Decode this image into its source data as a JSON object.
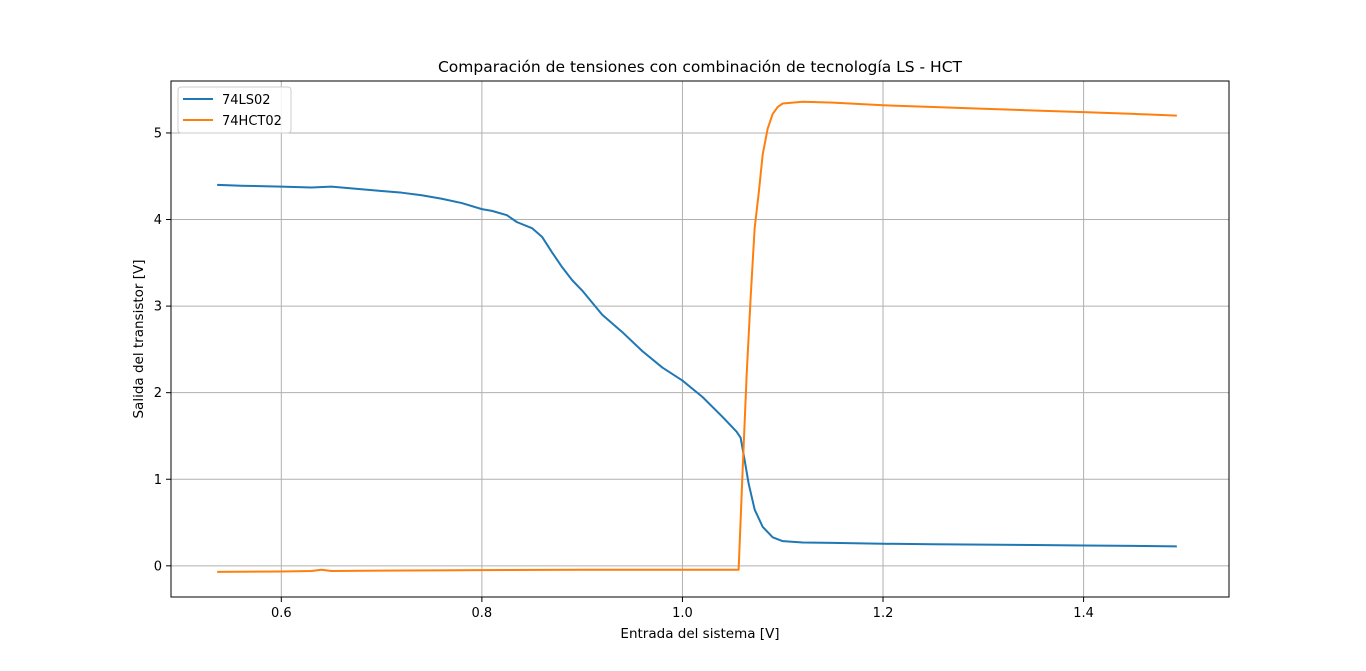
{
  "chart_data": {
    "type": "line",
    "title": "Comparación de tensiones con combinación de tecnología LS - HCT",
    "xlabel": "Entrada del sistema [V]",
    "ylabel": "Salida del transistor [V]",
    "xlim": [
      0.49,
      1.545
    ],
    "ylim": [
      -0.36,
      5.6
    ],
    "xticks": [
      0.6,
      0.8,
      1.0,
      1.2,
      1.4
    ],
    "xtick_labels": [
      "0.6",
      "0.8",
      "1.0",
      "1.2",
      "1.4"
    ],
    "yticks": [
      0,
      1,
      2,
      3,
      4,
      5
    ],
    "ytick_labels": [
      "0",
      "1",
      "2",
      "3",
      "4",
      "5"
    ],
    "grid": true,
    "legend_position": "upper-left",
    "series": [
      {
        "name": "74LS02",
        "color": "#1f77b4",
        "x": [
          0.537,
          0.56,
          0.6,
          0.63,
          0.65,
          0.66,
          0.7,
          0.72,
          0.74,
          0.76,
          0.78,
          0.8,
          0.81,
          0.825,
          0.835,
          0.85,
          0.86,
          0.87,
          0.88,
          0.89,
          0.9,
          0.92,
          0.94,
          0.96,
          0.98,
          1.0,
          1.02,
          1.04,
          1.054,
          1.058,
          1.062,
          1.066,
          1.072,
          1.08,
          1.09,
          1.1,
          1.12,
          1.15,
          1.2,
          1.25,
          1.3,
          1.35,
          1.4,
          1.45,
          1.492
        ],
        "y": [
          4.4,
          4.39,
          4.38,
          4.37,
          4.38,
          4.37,
          4.33,
          4.31,
          4.28,
          4.24,
          4.19,
          4.12,
          4.1,
          4.05,
          3.97,
          3.9,
          3.8,
          3.62,
          3.45,
          3.3,
          3.18,
          2.9,
          2.7,
          2.48,
          2.29,
          2.14,
          1.95,
          1.72,
          1.55,
          1.48,
          1.22,
          0.95,
          0.65,
          0.45,
          0.33,
          0.285,
          0.27,
          0.265,
          0.255,
          0.25,
          0.245,
          0.24,
          0.235,
          0.23,
          0.225
        ]
      },
      {
        "name": "74HCT02",
        "color": "#ff7f0e",
        "x": [
          0.537,
          0.6,
          0.63,
          0.64,
          0.65,
          0.7,
          0.8,
          0.9,
          1.0,
          1.05,
          1.056,
          1.06,
          1.064,
          1.068,
          1.072,
          1.076,
          1.08,
          1.085,
          1.09,
          1.095,
          1.1,
          1.12,
          1.15,
          1.2,
          1.25,
          1.3,
          1.35,
          1.4,
          1.45,
          1.492
        ],
        "y": [
          -0.07,
          -0.065,
          -0.06,
          -0.045,
          -0.06,
          -0.055,
          -0.05,
          -0.045,
          -0.045,
          -0.045,
          -0.045,
          1.1,
          2.2,
          3.1,
          3.9,
          4.3,
          4.75,
          5.05,
          5.22,
          5.3,
          5.34,
          5.36,
          5.35,
          5.32,
          5.3,
          5.28,
          5.26,
          5.24,
          5.22,
          5.2
        ]
      }
    ]
  }
}
